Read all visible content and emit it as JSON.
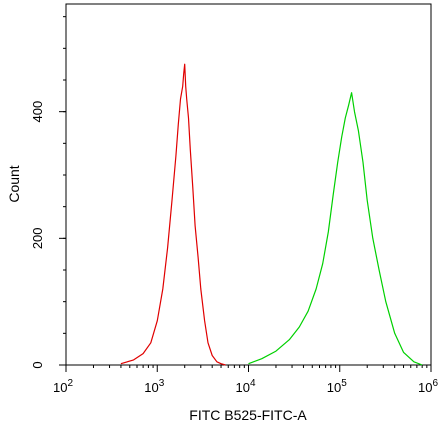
{
  "chart_data": {
    "type": "line",
    "title": "",
    "xlabel": "FITC B525-FITC-A",
    "ylabel": "Count",
    "x_scale": "log",
    "xlim": [
      100,
      1000000
    ],
    "ylim": [
      0,
      570
    ],
    "x_ticks": [
      {
        "value": 100,
        "base": "10",
        "exp": "2"
      },
      {
        "value": 1000,
        "base": "10",
        "exp": "3"
      },
      {
        "value": 10000,
        "base": "10",
        "exp": "4"
      },
      {
        "value": 100000,
        "base": "10",
        "exp": "5"
      },
      {
        "value": 1000000,
        "base": "10",
        "exp": "6"
      }
    ],
    "y_ticks": [
      0,
      200,
      400
    ],
    "grid": false,
    "series": [
      {
        "color": "#e00000",
        "x": [
          400,
          550,
          700,
          850,
          1000,
          1150,
          1300,
          1450,
          1600,
          1700,
          1800,
          1900,
          1950,
          2000,
          2050,
          2100,
          2200,
          2300,
          2450,
          2600,
          2800,
          3000,
          3300,
          3600,
          4000,
          4500,
          5000,
          5600
        ],
        "y": [
          2,
          8,
          18,
          35,
          70,
          120,
          185,
          260,
          330,
          380,
          420,
          440,
          460,
          475,
          440,
          420,
          390,
          340,
          280,
          220,
          170,
          120,
          70,
          35,
          15,
          5,
          2,
          0
        ]
      },
      {
        "color": "#00d000",
        "x": [
          10000,
          14000,
          20000,
          28000,
          36000,
          45000,
          55000,
          65000,
          75000,
          85000,
          95000,
          105000,
          115000,
          125000,
          135000,
          145000,
          160000,
          180000,
          200000,
          230000,
          270000,
          320000,
          400000,
          500000,
          650000,
          800000
        ],
        "y": [
          2,
          10,
          22,
          40,
          60,
          85,
          120,
          160,
          210,
          270,
          320,
          360,
          390,
          410,
          430,
          400,
          370,
          320,
          260,
          200,
          150,
          100,
          50,
          20,
          5,
          0
        ]
      }
    ]
  }
}
